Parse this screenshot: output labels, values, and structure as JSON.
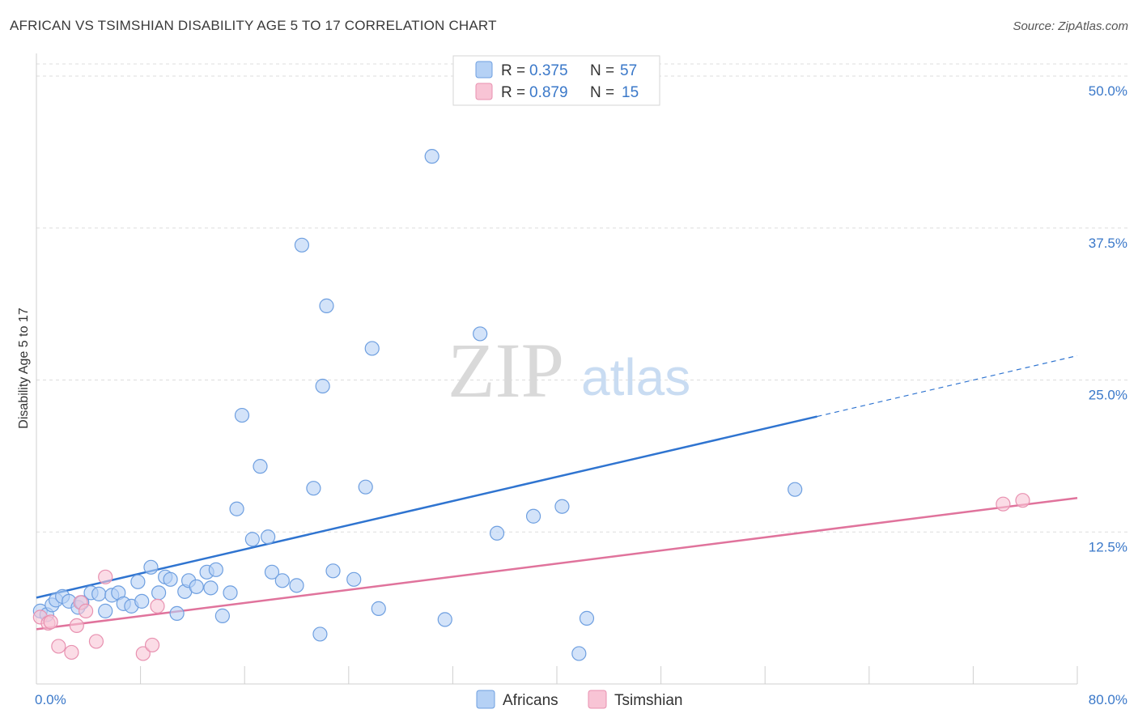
{
  "title": "AFRICAN VS TSIMSHIAN DISABILITY AGE 5 TO 17 CORRELATION CHART",
  "source": "Source: ZipAtlas.com",
  "watermark": {
    "zip": "ZIP",
    "atlas": "atlas"
  },
  "colors": {
    "blue": "#2f74d0",
    "blue_fill": "#b5d1f5",
    "pink": "#e0739c",
    "pink_fill": "#f8c4d5",
    "tick_text": "#3a78c9",
    "grid": "#dddddd"
  },
  "legend_top": [
    {
      "r_label": "R =",
      "r_value": "0.375",
      "n_label": "N =",
      "n_value": "57",
      "color": "blue"
    },
    {
      "r_label": "R =",
      "r_value": "0.879",
      "n_label": "N =",
      "n_value": "15",
      "color": "pink"
    }
  ],
  "legend_bottom": [
    "Africans",
    "Tsimshian"
  ],
  "chart_data": {
    "type": "scatter",
    "title": "AFRICAN VS TSIMSHIAN DISABILITY AGE 5 TO 17 CORRELATION CHART",
    "xlabel": "",
    "ylabel": "Disability Age 5 to 17",
    "xlim": [
      0,
      80
    ],
    "ylim": [
      0,
      51
    ],
    "x_tick_labels": [
      "0.0%",
      "80.0%"
    ],
    "y_ticks": [
      12.5,
      25.0,
      37.5,
      50.0
    ],
    "y_tick_labels": [
      "12.5%",
      "25.0%",
      "37.5%",
      "50.0%"
    ],
    "grid": "horizontal dashed",
    "legend_position": "top-center",
    "series": [
      {
        "name": "Africans",
        "color": "blue",
        "points": [
          [
            0.3,
            6.0
          ],
          [
            0.8,
            5.7
          ],
          [
            1.2,
            6.5
          ],
          [
            1.5,
            6.9
          ],
          [
            2.0,
            7.2
          ],
          [
            2.5,
            6.8
          ],
          [
            3.2,
            6.3
          ],
          [
            3.5,
            6.7
          ],
          [
            4.2,
            7.5
          ],
          [
            4.8,
            7.4
          ],
          [
            5.3,
            6.0
          ],
          [
            5.8,
            7.3
          ],
          [
            6.3,
            7.5
          ],
          [
            6.7,
            6.6
          ],
          [
            7.3,
            6.4
          ],
          [
            7.8,
            8.4
          ],
          [
            8.1,
            6.8
          ],
          [
            8.8,
            9.6
          ],
          [
            9.4,
            7.5
          ],
          [
            9.9,
            8.8
          ],
          [
            10.3,
            8.6
          ],
          [
            10.8,
            5.8
          ],
          [
            11.4,
            7.6
          ],
          [
            11.7,
            8.5
          ],
          [
            12.3,
            8.0
          ],
          [
            13.1,
            9.2
          ],
          [
            13.4,
            7.9
          ],
          [
            13.8,
            9.4
          ],
          [
            14.3,
            5.6
          ],
          [
            14.9,
            7.5
          ],
          [
            15.4,
            14.4
          ],
          [
            15.8,
            22.1
          ],
          [
            16.6,
            11.9
          ],
          [
            17.2,
            17.9
          ],
          [
            17.8,
            12.1
          ],
          [
            18.1,
            9.2
          ],
          [
            18.9,
            8.5
          ],
          [
            20.0,
            8.1
          ],
          [
            20.4,
            36.1
          ],
          [
            21.3,
            16.1
          ],
          [
            21.8,
            4.1
          ],
          [
            22.0,
            24.5
          ],
          [
            22.3,
            31.1
          ],
          [
            22.8,
            9.3
          ],
          [
            24.4,
            8.6
          ],
          [
            25.3,
            16.2
          ],
          [
            25.8,
            27.6
          ],
          [
            26.3,
            6.2
          ],
          [
            30.4,
            43.4
          ],
          [
            31.4,
            5.3
          ],
          [
            34.1,
            28.8
          ],
          [
            35.4,
            12.4
          ],
          [
            38.2,
            13.8
          ],
          [
            40.4,
            14.6
          ],
          [
            41.7,
            2.5
          ],
          [
            42.3,
            5.4
          ],
          [
            58.3,
            16.0
          ]
        ],
        "trend": {
          "x0": 0,
          "y0": 7.1,
          "x1": 60,
          "y1": 22.0,
          "dashed_to_x": 80,
          "dashed_to_y": 27.0
        }
      },
      {
        "name": "Tsimshian",
        "color": "pink",
        "points": [
          [
            0.3,
            5.5
          ],
          [
            0.9,
            5.0
          ],
          [
            1.1,
            5.1
          ],
          [
            1.7,
            3.1
          ],
          [
            2.7,
            2.6
          ],
          [
            3.1,
            4.8
          ],
          [
            3.4,
            6.7
          ],
          [
            3.8,
            6.0
          ],
          [
            4.6,
            3.5
          ],
          [
            5.3,
            8.8
          ],
          [
            8.2,
            2.5
          ],
          [
            8.9,
            3.2
          ],
          [
            9.3,
            6.4
          ],
          [
            74.3,
            14.8
          ],
          [
            75.8,
            15.1
          ]
        ],
        "trend": {
          "x0": 0,
          "y0": 4.5,
          "x1": 80,
          "y1": 15.3
        }
      }
    ]
  }
}
